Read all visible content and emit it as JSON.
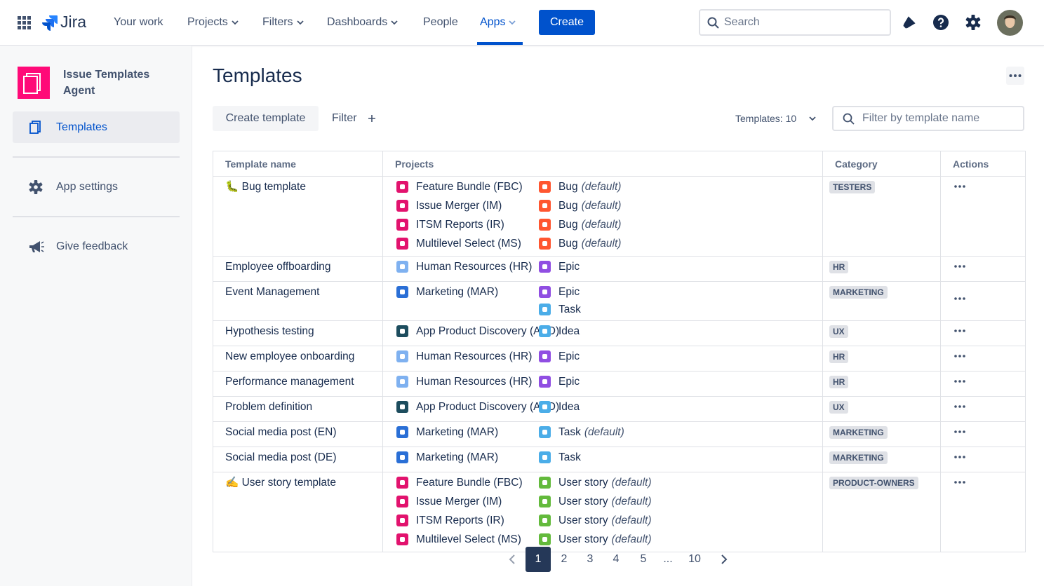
{
  "nav": {
    "logo": "Jira",
    "items": [
      "Your work",
      "Projects",
      "Filters",
      "Dashboards",
      "People",
      "Apps"
    ],
    "create": "Create",
    "search": "Search"
  },
  "sidebar": {
    "app_title": "Issue Templates Agent",
    "items": [
      "Templates",
      "App settings",
      "Give feedback"
    ]
  },
  "page": {
    "title": "Templates",
    "create_button": "Create template",
    "filter": "Filter",
    "templates_count": "Templates: 10",
    "filter_placeholder": "Filter by template name"
  },
  "table": {
    "columns": [
      "Template name",
      "Projects",
      "Category",
      "Actions"
    ],
    "rows": [
      {
        "name": "🐛 Bug template",
        "category": "TESTERS",
        "projects": [
          {
            "name": "Feature Bundle (FBC)",
            "color": "#e2136e",
            "types": [
              {
                "name": "Bug",
                "note": "(default)",
                "color": "#ff5630"
              }
            ]
          },
          {
            "name": "Issue Merger (IM)",
            "color": "#e2136e",
            "types": [
              {
                "name": "Bug",
                "note": "(default)",
                "color": "#ff5630"
              }
            ]
          },
          {
            "name": "ITSM Reports (IR)",
            "color": "#e2136e",
            "types": [
              {
                "name": "Bug",
                "note": "(default)",
                "color": "#ff5630"
              }
            ]
          },
          {
            "name": "Multilevel Select (MS)",
            "color": "#e2136e",
            "types": [
              {
                "name": "Bug",
                "note": "(default)",
                "color": "#ff5630"
              }
            ]
          }
        ]
      },
      {
        "name": "Employee offboarding",
        "category": "HR",
        "projects": [
          {
            "name": "Human Resources (HR)",
            "color": "#7fb1f0",
            "types": [
              {
                "name": "Epic",
                "color": "#904ee2"
              }
            ]
          }
        ]
      },
      {
        "name": "Event Management",
        "category": "MARKETING",
        "projects": [
          {
            "name": "Marketing (MAR)",
            "color": "#2a6fd6",
            "types": [
              {
                "name": "Epic",
                "color": "#904ee2"
              },
              {
                "name": "Task",
                "color": "#4bade8"
              }
            ]
          }
        ]
      },
      {
        "name": "Hypothesis testing",
        "category": "UX",
        "projects": [
          {
            "name": "App Product Discovery (APD)",
            "color": "#1d4d5e",
            "types": [
              {
                "name": "Idea",
                "color": "#4bade8"
              }
            ]
          }
        ]
      },
      {
        "name": "New employee onboarding",
        "category": "HR",
        "projects": [
          {
            "name": "Human Resources (HR)",
            "color": "#7fb1f0",
            "types": [
              {
                "name": "Epic",
                "color": "#904ee2"
              }
            ]
          }
        ]
      },
      {
        "name": "Performance management",
        "category": "HR",
        "projects": [
          {
            "name": "Human Resources (HR)",
            "color": "#7fb1f0",
            "types": [
              {
                "name": "Epic",
                "color": "#904ee2"
              }
            ]
          }
        ]
      },
      {
        "name": "Problem definition",
        "category": "UX",
        "projects": [
          {
            "name": "App Product Discovery (APD)",
            "color": "#1d4d5e",
            "types": [
              {
                "name": "Idea",
                "color": "#4bade8"
              }
            ]
          }
        ]
      },
      {
        "name": "Social media post (EN)",
        "category": "MARKETING",
        "projects": [
          {
            "name": "Marketing (MAR)",
            "color": "#2a6fd6",
            "types": [
              {
                "name": "Task",
                "note": "(default)",
                "color": "#4bade8"
              }
            ]
          }
        ]
      },
      {
        "name": "Social media post (DE)",
        "category": "MARKETING",
        "projects": [
          {
            "name": "Marketing (MAR)",
            "color": "#2a6fd6",
            "types": [
              {
                "name": "Task",
                "color": "#4bade8"
              }
            ]
          }
        ]
      },
      {
        "name": "✍️ User story template",
        "category": "PRODUCT-OWNERS",
        "projects": [
          {
            "name": "Feature Bundle (FBC)",
            "color": "#e2136e",
            "types": [
              {
                "name": "User story",
                "note": "(default)",
                "color": "#63ba3c"
              }
            ]
          },
          {
            "name": "Issue Merger (IM)",
            "color": "#e2136e",
            "types": [
              {
                "name": "User story",
                "note": "(default)",
                "color": "#63ba3c"
              }
            ]
          },
          {
            "name": "ITSM Reports (IR)",
            "color": "#e2136e",
            "types": [
              {
                "name": "User story",
                "note": "(default)",
                "color": "#63ba3c"
              }
            ]
          },
          {
            "name": "Multilevel Select (MS)",
            "color": "#e2136e",
            "types": [
              {
                "name": "User story",
                "note": "(default)",
                "color": "#63ba3c"
              }
            ]
          }
        ]
      }
    ]
  },
  "pagination": {
    "pages": [
      "1",
      "2",
      "3",
      "4",
      "5",
      "...",
      "10"
    ]
  }
}
